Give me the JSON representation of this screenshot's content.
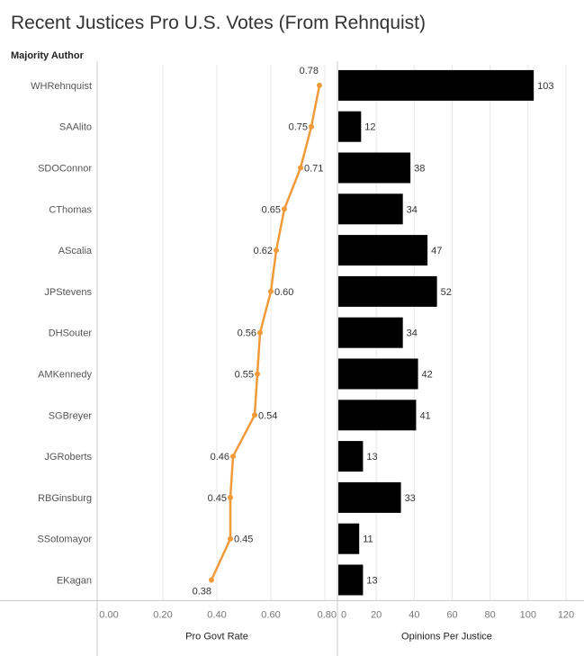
{
  "title": "Recent Justices Pro U.S. Votes (From Rehnquist)",
  "row_header": "Majority Author",
  "colors": {
    "line": "#f09a3a",
    "bar": "#000000",
    "grid": "#e8e8e8",
    "axis": "#c8c8c8",
    "text": "#555555"
  },
  "chart_data": [
    {
      "type": "line",
      "title": "",
      "xlabel": "Pro Govt Rate",
      "ylabel": "Majority Author",
      "orientation": "horizontal",
      "xlim": [
        0,
        0.8
      ],
      "x_ticks": [
        "0.00",
        "0.20",
        "0.40",
        "0.60",
        "0.80"
      ],
      "categories": [
        "WHRehnquist",
        "SAAlito",
        "SDOConnor",
        "CThomas",
        "AScalia",
        "JPStevens",
        "DHSouter",
        "AMKennedy",
        "SGBreyer",
        "JGRoberts",
        "RBGinsburg",
        "SSotomayor",
        "EKagan"
      ],
      "values": [
        0.78,
        0.75,
        0.71,
        0.65,
        0.62,
        0.6,
        0.56,
        0.55,
        0.54,
        0.46,
        0.45,
        0.45,
        0.38
      ],
      "value_labels": [
        "0.78",
        "0.75",
        "0.71",
        "0.65",
        "0.62",
        "0.60",
        "0.56",
        "0.55",
        "0.54",
        "0.46",
        "0.45",
        "0.45",
        "0.38"
      ],
      "label_side": [
        "above",
        "left",
        "right",
        "left",
        "left",
        "right",
        "left",
        "left",
        "right",
        "left",
        "left",
        "right",
        "below"
      ],
      "grid": true
    },
    {
      "type": "bar",
      "title": "",
      "xlabel": "Opinions Per Justice",
      "orientation": "horizontal",
      "xlim": [
        0,
        120
      ],
      "x_ticks": [
        "0",
        "20",
        "40",
        "60",
        "80",
        "100",
        "120"
      ],
      "categories": [
        "WHRehnquist",
        "SAAlito",
        "SDOConnor",
        "CThomas",
        "AScalia",
        "JPStevens",
        "DHSouter",
        "AMKennedy",
        "SGBreyer",
        "JGRoberts",
        "RBGinsburg",
        "SSotomayor",
        "EKagan"
      ],
      "values": [
        103,
        12,
        38,
        34,
        47,
        52,
        34,
        42,
        41,
        13,
        33,
        11,
        13
      ],
      "grid": true
    }
  ]
}
